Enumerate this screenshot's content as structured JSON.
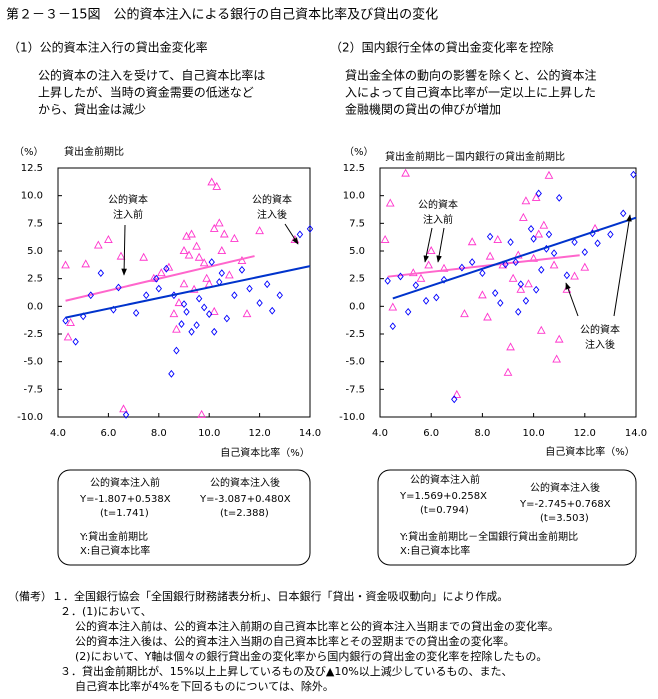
{
  "title": "第２－３－15図　公的資本注入による銀行の自己資本比率及び貸出の変化",
  "chart_data": [
    {
      "type": "scatter",
      "heading": "（1）公的資本注入行の貸出金変化率",
      "description": [
        "公的資本の注入を受けて、自己資本比率は",
        "上昇したが、当時の資金需要の低迷など",
        "から、貸出金は減少"
      ],
      "y_unit": "（%）",
      "y_title": "貸出金前期比",
      "x_title": "自己資本比率（%）",
      "xlim": [
        4,
        14
      ],
      "ylim": [
        -10,
        12.5
      ],
      "xticks": [
        {
          "value": 4,
          "label": "4.0"
        },
        {
          "value": 6,
          "label": "6.0"
        },
        {
          "value": 8,
          "label": "8.0"
        },
        {
          "value": 10,
          "label": "10.0"
        },
        {
          "value": 12,
          "label": "12.0"
        },
        {
          "value": 14,
          "label": "14.0"
        }
      ],
      "yticks": [
        12.5,
        {
          "value": 10,
          "label": "10.0"
        },
        7.5,
        {
          "value": 5,
          "label": "5.0"
        },
        2.5,
        {
          "value": 0,
          "label": "0.0"
        },
        -2.5,
        {
          "value": -5,
          "label": "-5.0"
        },
        -7.5,
        {
          "value": -10,
          "label": "-10.0"
        }
      ],
      "annotations": [
        {
          "lines": [
            "公的資本",
            "注入前"
          ]
        },
        {
          "lines": [
            "公的資本",
            "注入後"
          ]
        }
      ],
      "axis_notes": [
        "Y:貸出金前期比",
        "X:自己資本比率"
      ],
      "series": [
        {
          "name": "公的資本注入前",
          "color": "#ff33cc",
          "marker": "triangle",
          "x": [
            4.3,
            4.4,
            4.5,
            5.1,
            5.6,
            6.0,
            6.5,
            6.6,
            7.4,
            7.8,
            8.1,
            8.4,
            8.6,
            8.8,
            9.0,
            9.1,
            9.2,
            9.3,
            9.5,
            9.6,
            9.7,
            9.8,
            9.9,
            10.0,
            10.1,
            10.2,
            10.3,
            10.4,
            10.5,
            10.6,
            10.8,
            11.0,
            11.3,
            11.5,
            13.4,
            9.0,
            8.7,
            9.4,
            10.2,
            12.0
          ],
          "values": [
            3.7,
            -2.8,
            -1.5,
            3.8,
            5.5,
            6.0,
            4.5,
            -9.3,
            4.4,
            2.5,
            3.0,
            3.5,
            -0.7,
            0.3,
            2.0,
            6.3,
            4.6,
            6.5,
            5.4,
            4.4,
            -9.8,
            3.9,
            2.5,
            2.0,
            11.2,
            7.0,
            10.8,
            7.5,
            5.0,
            6.5,
            2.8,
            6.1,
            4.1,
            -0.7,
            6.0,
            5.0,
            -2.1,
            1.5,
            -0.5,
            6.8
          ],
          "fit": {
            "equation": "Y=-1.807+0.538X",
            "t": "(t=1.741)",
            "intercept": -1.807,
            "slope": 0.538,
            "x": [
              4.3,
              11.8
            ],
            "color": "#ff66cc"
          }
        },
        {
          "name": "公的資本注入後",
          "color": "#0000ff",
          "marker": "diamond",
          "x": [
            4.3,
            4.7,
            5.0,
            5.3,
            5.7,
            6.2,
            6.4,
            6.7,
            7.1,
            7.5,
            7.9,
            8.0,
            8.3,
            8.5,
            8.6,
            8.7,
            8.9,
            9.0,
            9.1,
            9.3,
            9.5,
            9.6,
            9.8,
            10.0,
            10.1,
            10.2,
            10.4,
            10.5,
            10.7,
            11.0,
            11.3,
            11.6,
            12.0,
            12.3,
            12.5,
            12.8,
            13.6,
            14.0
          ],
          "values": [
            -1.3,
            -3.2,
            -0.9,
            1.0,
            3.0,
            -0.3,
            1.7,
            -9.8,
            -0.6,
            1.0,
            2.5,
            1.6,
            3.4,
            -6.1,
            1.0,
            -4.0,
            -1.6,
            0.2,
            -0.5,
            -2.3,
            -1.7,
            0.7,
            -0.1,
            -0.7,
            4.0,
            -2.3,
            2.2,
            3.0,
            -1.1,
            1.0,
            3.3,
            1.6,
            0.3,
            2.0,
            -0.4,
            1.0,
            6.5,
            7.0
          ],
          "fit": {
            "equation": "Y=-3.087+0.480X",
            "t": "(t=2.388)",
            "intercept": -3.087,
            "slope": 0.48,
            "x": [
              4.3,
              14
            ],
            "color": "#0033cc"
          }
        }
      ]
    },
    {
      "type": "scatter",
      "heading": "（2）国内銀行全体の貸出金変化率を控除",
      "description": [
        "貸出金全体の動向の影響を除くと、公的資本注",
        "入によって自己資本比率が一定以上に上昇した",
        "金融機関の貸出の伸びが増加"
      ],
      "y_unit": "（%）",
      "y_title": "貸出金前期比－国内銀行の貸出金前期比",
      "x_title": "自己資本比率（%）",
      "xlim": [
        4,
        14
      ],
      "ylim": [
        -10,
        12.5
      ],
      "xticks": [
        {
          "value": 4,
          "label": "4.0"
        },
        {
          "value": 6,
          "label": "6.0"
        },
        {
          "value": 8,
          "label": "8.0"
        },
        {
          "value": 10,
          "label": "10.0"
        },
        {
          "value": 12,
          "label": "12.0"
        },
        {
          "value": 14,
          "label": "14.0"
        }
      ],
      "yticks": [
        12.5,
        {
          "value": 10,
          "label": "10.0"
        },
        7.5,
        {
          "value": 5,
          "label": "5.0"
        },
        2.5,
        {
          "value": 0,
          "label": "0.0"
        },
        -2.5,
        {
          "value": -5,
          "label": "-5.0"
        },
        -7.5,
        {
          "value": -10,
          "label": "-10.0"
        }
      ],
      "annotations": [
        {
          "lines": [
            "公的資本",
            "注入前"
          ]
        },
        {
          "lines": [
            "公的資本",
            "注入後"
          ]
        }
      ],
      "axis_notes": [
        "Y:貸出金前期比－全国銀行貸出金前期比",
        "X:自己資本比率"
      ],
      "series": [
        {
          "name": "公的資本注入前",
          "color": "#ff33cc",
          "marker": "triangle",
          "x": [
            4.2,
            4.4,
            4.5,
            5.0,
            5.3,
            5.6,
            5.9,
            6.0,
            6.5,
            7.0,
            7.3,
            7.6,
            8.0,
            8.3,
            8.6,
            8.8,
            9.0,
            9.2,
            9.4,
            9.5,
            9.6,
            9.7,
            9.8,
            10.0,
            10.1,
            10.2,
            10.4,
            10.6,
            10.8,
            11.0,
            11.3,
            11.6,
            12.0,
            12.4,
            10.3,
            9.1,
            8.2,
            10.9
          ],
          "values": [
            6.0,
            9.3,
            -0.1,
            12.0,
            3.0,
            2.5,
            3.7,
            5.0,
            3.4,
            -8.0,
            -0.7,
            5.8,
            1.0,
            4.5,
            6.0,
            3.7,
            -6.0,
            2.5,
            4.6,
            1.5,
            8.0,
            9.5,
            2.0,
            4.3,
            9.8,
            6.5,
            7.3,
            11.8,
            3.7,
            -3.0,
            1.5,
            2.7,
            3.5,
            7.0,
            -2.2,
            -3.7,
            -1.0,
            -4.8
          ],
          "fit": {
            "equation": "Y=1.569+0.258X",
            "t": "(t=0.794)",
            "intercept": 1.569,
            "slope": 0.258,
            "x": [
              4.3,
              11.8
            ],
            "color": "#ff66cc"
          }
        },
        {
          "name": "公的資本注入後",
          "color": "#0000ff",
          "marker": "diamond",
          "x": [
            4.3,
            4.5,
            4.8,
            5.1,
            5.4,
            5.8,
            6.2,
            6.5,
            6.9,
            7.2,
            7.6,
            8.0,
            8.3,
            8.5,
            8.7,
            8.9,
            9.1,
            9.3,
            9.5,
            9.7,
            9.9,
            10.0,
            10.2,
            10.3,
            10.5,
            10.6,
            10.8,
            11.0,
            11.3,
            11.6,
            12.0,
            12.5,
            13.0,
            13.5,
            13.9,
            9.4,
            10.1,
            12.3
          ],
          "values": [
            2.3,
            -1.8,
            2.7,
            -0.5,
            1.9,
            0.5,
            0.8,
            2.4,
            -8.4,
            3.5,
            4.0,
            3.0,
            6.3,
            1.2,
            0.3,
            3.8,
            5.8,
            4.0,
            2.0,
            0.5,
            7.0,
            6.1,
            10.2,
            3.3,
            5.2,
            6.5,
            4.8,
            9.8,
            2.8,
            5.8,
            4.9,
            5.7,
            6.5,
            8.4,
            11.9,
            -0.5,
            1.5,
            6.6
          ],
          "fit": {
            "equation": "Y=-2.745+0.768X",
            "t": "(t=3.503)",
            "intercept": -2.745,
            "slope": 0.768,
            "x": [
              4.5,
              14
            ],
            "color": "#0033cc"
          }
        }
      ]
    }
  ],
  "notes": [
    "（備考）１．全国銀行協会「全国銀行財務諸表分析」、日本銀行「貸出・資金吸収動向」により作成。",
    "２．(1)において、",
    "公的資本注入前は、公的資本注入前期の自己資本比率と公的資本注入当期までの貸出金の変化率。",
    "公的資本注入後は、公的資本注入当期の自己資本比率とその翌期までの貸出金の変化率。",
    "(2)において、Y軸は個々の銀行貸出金の変化率から国内銀行の貸出金の変化率を控除したもの。",
    "３．貸出金前期比が、15%以上上昇しているもの及び▲10%以上減少しているもの、また、",
    "自己資本比率が4%を下回るものについては、除外。"
  ]
}
